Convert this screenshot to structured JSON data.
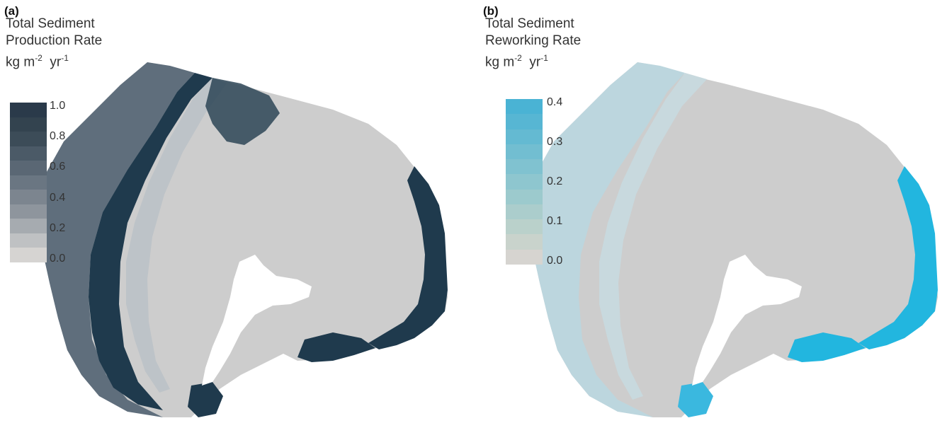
{
  "panel_a": {
    "label": "(a)",
    "legend_title": {
      "line1": "Total Sediment",
      "line2": "Production  Rate",
      "unit_base": "kg m",
      "unit_exp1": "-2",
      "unit_mid": "  yr",
      "unit_exp2": "-1"
    },
    "ticks": [
      "1.0",
      "0.8",
      "0.6",
      "0.4",
      "0.2",
      "0.0"
    ],
    "ramp_colors": [
      "#2a3a4a",
      "#33434f",
      "#3c4c58",
      "#4b5a67",
      "#5a6774",
      "#6a7682",
      "#7c858f",
      "#8e959d",
      "#a6abb0",
      "#bfc1c3",
      "#d6d4d2"
    ]
  },
  "panel_b": {
    "label": "(b)",
    "legend_title": {
      "line1": "Total Sediment",
      "line2": "Reworking Rate",
      "unit_base": "kg m",
      "unit_exp1": "-2",
      "unit_mid": "  yr",
      "unit_exp2": "-1"
    },
    "ticks": [
      "0.4",
      "0.3",
      "0.2",
      "0.1",
      "0.0"
    ],
    "ramp_colors": [
      "#4ab3d4",
      "#57b6d3",
      "#64bad2",
      "#72bed1",
      "#80c2d0",
      "#8ec6cf",
      "#9ccacd",
      "#abcdcc",
      "#bad1cb",
      "#c9d3cc",
      "#d6d4d0"
    ]
  },
  "colors": {
    "reef_light": "#cdcdcd",
    "production_outer": "#5f6e7c",
    "production_high": "#1f3a4d",
    "production_mid": "#bdc3c8",
    "reworking_outer": "#bcd6de",
    "reworking_high": "#22b6df"
  }
}
